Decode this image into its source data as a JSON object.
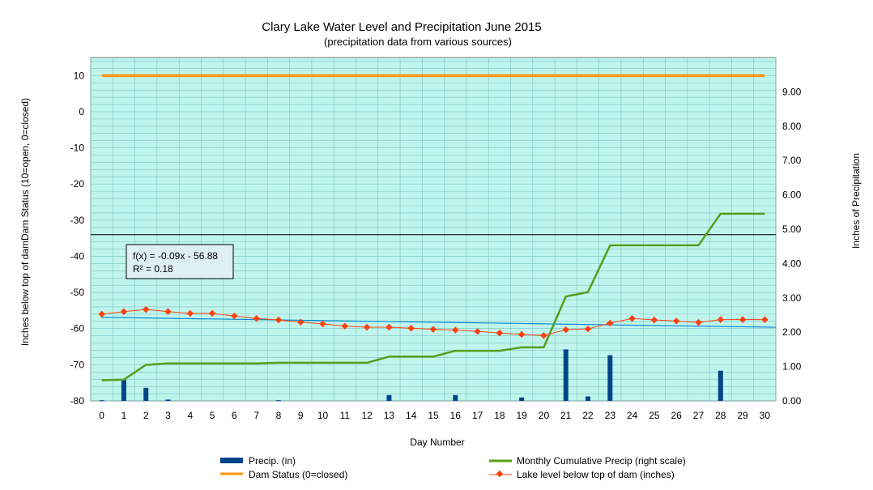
{
  "chart_data": {
    "type": "line",
    "title": "Clary Lake Water Level and Precipitation June 2015",
    "subtitle": "(precipitation data from various sources)",
    "xlabel": "Day Number",
    "ylabel_left": "Inches  below  top of  damDam Status (10=open, 0=closed)",
    "ylabel_right": "Inches  of  Precipitation",
    "x_ticks": [
      0,
      1,
      2,
      3,
      4,
      5,
      6,
      7,
      8,
      9,
      10,
      11,
      12,
      13,
      14,
      15,
      16,
      17,
      18,
      19,
      20,
      21,
      22,
      23,
      24,
      25,
      26,
      27,
      28,
      29,
      30
    ],
    "xlim": [
      -0.5,
      30.5
    ],
    "ylim_left": [
      -80,
      15
    ],
    "ylim_right": [
      0,
      10
    ],
    "y_ticks_left": [
      10,
      0,
      -10,
      -20,
      -30,
      -40,
      -50,
      -60,
      -70,
      -80
    ],
    "y_ticks_right": [
      "9.00",
      "8.00",
      "7.00",
      "6.00",
      "5.00",
      "4.00",
      "3.00",
      "2.00",
      "1.00",
      "0.00"
    ],
    "y_ticks_right_values": [
      9,
      8,
      7,
      6,
      5,
      4,
      3,
      2,
      1,
      0
    ],
    "grid": true,
    "legend_position": "bottom",
    "colors": {
      "plot_bg": "#bff5ed",
      "grid": "#7fbfbf",
      "precip": "#004586",
      "cumulative": "#579d1c",
      "dam": "#ff950e",
      "lake": "#ff420e",
      "trend": "#0084d1",
      "hline": "#000000"
    },
    "series": [
      {
        "name": "Precip. (in)",
        "axis": "right",
        "style": "bar",
        "x": [
          0,
          1,
          2,
          3,
          4,
          5,
          6,
          7,
          8,
          9,
          10,
          11,
          12,
          13,
          14,
          15,
          16,
          17,
          18,
          19,
          20,
          21,
          22,
          23,
          24,
          25,
          26,
          27,
          28,
          29,
          30
        ],
        "values": [
          0.02,
          0.62,
          0.38,
          0.04,
          0,
          0,
          0,
          0,
          0.02,
          0,
          0,
          0,
          0,
          0.17,
          0,
          0,
          0.17,
          0,
          0,
          0.1,
          0,
          1.5,
          0.13,
          1.33,
          0,
          0,
          0,
          0,
          0.88,
          0,
          0
        ]
      },
      {
        "name": "Monthly Cumulative Precip (right scale)",
        "axis": "right",
        "style": "line",
        "x": [
          0,
          1,
          2,
          3,
          4,
          5,
          6,
          7,
          8,
          9,
          10,
          11,
          12,
          13,
          14,
          15,
          16,
          17,
          18,
          19,
          20,
          21,
          22,
          23,
          24,
          25,
          26,
          27,
          28,
          29,
          30
        ],
        "values": [
          0.6,
          0.62,
          1.05,
          1.09,
          1.09,
          1.09,
          1.09,
          1.09,
          1.11,
          1.11,
          1.11,
          1.11,
          1.11,
          1.29,
          1.29,
          1.29,
          1.46,
          1.46,
          1.46,
          1.56,
          1.56,
          3.04,
          3.17,
          4.53,
          4.53,
          4.53,
          4.53,
          4.53,
          5.45,
          5.45,
          5.45
        ]
      },
      {
        "name": "Dam Status (0=closed)",
        "axis": "left",
        "style": "line",
        "x": [
          0,
          30
        ],
        "values": [
          10,
          10
        ]
      },
      {
        "name": "Lake level below top of dam (inches)",
        "axis": "left",
        "style": "line-marker",
        "x": [
          0,
          1,
          2,
          3,
          4,
          5,
          6,
          7,
          8,
          9,
          10,
          11,
          12,
          13,
          14,
          15,
          16,
          17,
          18,
          19,
          20,
          21,
          22,
          23,
          24,
          25,
          26,
          27,
          28,
          29,
          30
        ],
        "values": [
          -56,
          -55.3,
          -54.7,
          -55.3,
          -55.8,
          -55.8,
          -56.5,
          -57.2,
          -57.6,
          -58.2,
          -58.7,
          -59.3,
          -59.6,
          -59.6,
          -59.9,
          -60.2,
          -60.4,
          -60.8,
          -61.2,
          -61.6,
          -61.9,
          -60.3,
          -60.1,
          -58.5,
          -57.2,
          -57.6,
          -57.9,
          -58.3,
          -57.5,
          -57.5,
          -57.5
        ]
      }
    ],
    "trendline": {
      "equation": "f(x) = -0.09x - 56.88",
      "r2": "R² = 0.18",
      "slope": -0.09,
      "intercept": -56.88
    },
    "reference_line": {
      "axis": "left",
      "value": -34
    }
  }
}
